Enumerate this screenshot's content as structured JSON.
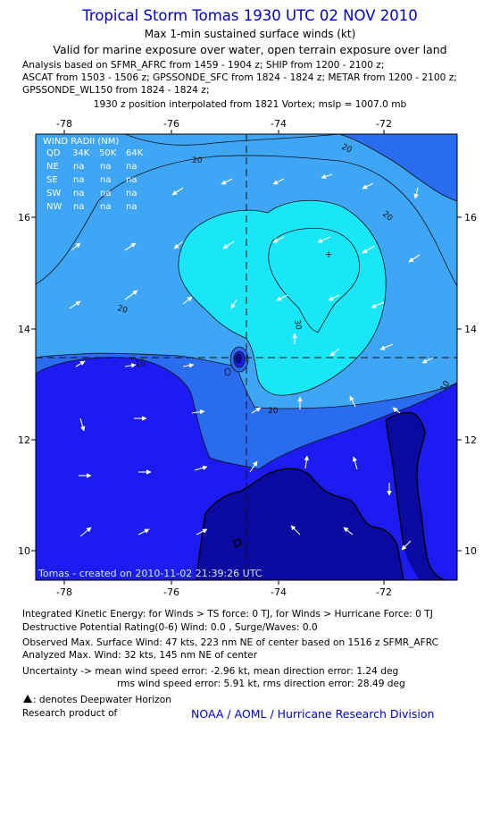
{
  "header": {
    "title": "Tropical Storm Tomas 1930 UTC 02 NOV 2010",
    "subtitle": "Max 1-min sustained surface winds (kt)",
    "validity": "Valid for marine exposure over water, open terrain exposure over land",
    "analysis_lines": [
      "Analysis based on SFMR_AFRC from 1459 - 1904 z; SHIP from 1200 - 2100 z;",
      "ASCAT from 1503 - 1506 z; GPSSONDE_SFC from 1824 - 1824 z; METAR from 1200 - 2100 z;",
      "GPSSONDE_WL150 from 1824 - 1824 z;"
    ],
    "position_note": "1930 z position interpolated from 1821 Vortex; mslp = 1007.0 mb"
  },
  "map": {
    "lon_ticks": [
      "-78",
      "-76",
      "-74",
      "-72"
    ],
    "lat_ticks": [
      "16",
      "14",
      "12",
      "10"
    ],
    "contour_labels": [
      "20",
      "20",
      "20",
      "20",
      "20",
      "30",
      "10",
      "10"
    ],
    "credit": "Tomas - created on 2010-11-02 21:39:26 UTC",
    "colors": {
      "band_lt10": "#1c1cf2",
      "band_10_20": "#2a6cf0",
      "band_20_30": "#3fa6f6",
      "band_gt30": "#19e7f7",
      "land": "#0a0aa0",
      "ocean_low": "#1c1cf2"
    },
    "wind_radii_table": {
      "title": "WIND RADII (NM)",
      "header": [
        "QD",
        "34K",
        "50K",
        "64K"
      ],
      "rows": [
        [
          "NE",
          "na",
          "na",
          "na"
        ],
        [
          "SE",
          "na",
          "na",
          "na"
        ],
        [
          "SW",
          "na",
          "na",
          "na"
        ],
        [
          "NW",
          "na",
          "na",
          "na"
        ]
      ]
    }
  },
  "footer": {
    "ike": "Integrated Kinetic Energy:  for Winds > TS force: 0 TJ,  for Winds > Hurricane Force: 0 TJ",
    "dpr": "Destructive Potential Rating(0-6)   Wind: 0.0 , Surge/Waves: 0.0",
    "observed_max": "Observed Max. Surface Wind: 47 kts, 223 nm NE of center based on 1516 z SFMR_AFRC",
    "analyzed_max": "Analyzed Max. Wind: 32 kts, 145 nm NE of center",
    "uncertainty1": "Uncertainty -> mean wind speed error:  -2.96 kt,   mean direction error: 1.24 deg",
    "uncertainty2": "rms wind speed error: 5.91 kt,   rms direction error: 28.49 deg",
    "deepwater_icon": "oil-platform-icon",
    "deepwater": ": denotes Deepwater Horizon",
    "research": "Research product of",
    "noaa": "NOAA / AOML / Hurricane Research Division"
  }
}
